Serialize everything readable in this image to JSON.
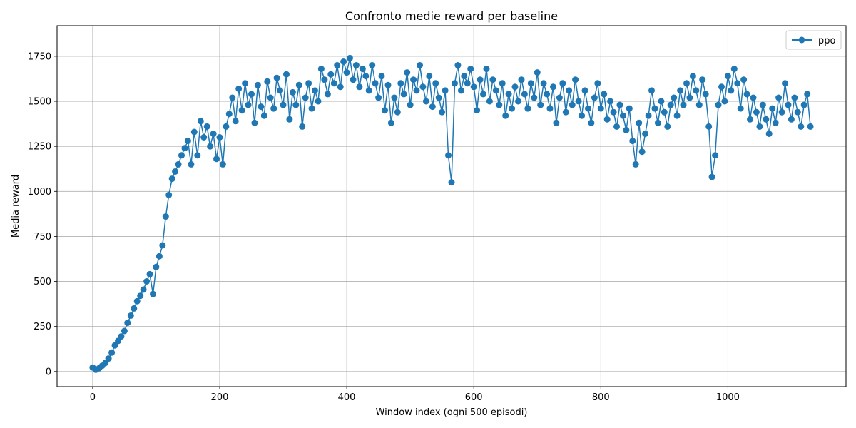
{
  "chart_data": {
    "type": "line",
    "title": "Confronto medie reward per baseline",
    "xlabel": "Window index (ogni 500 episodi)",
    "ylabel": "Media reward",
    "xlim": [
      -56,
      1186
    ],
    "ylim": [
      -84,
      1920
    ],
    "xticks": [
      0,
      200,
      400,
      600,
      800,
      1000
    ],
    "yticks": [
      0,
      250,
      500,
      750,
      1000,
      1250,
      1500,
      1750
    ],
    "grid": true,
    "legend_position": "top-right",
    "series": [
      {
        "name": "ppo",
        "color": "#1f77b4",
        "marker": "circle",
        "points": [
          [
            0,
            22
          ],
          [
            5,
            10
          ],
          [
            10,
            18
          ],
          [
            15,
            32
          ],
          [
            20,
            48
          ],
          [
            25,
            72
          ],
          [
            30,
            105
          ],
          [
            35,
            145
          ],
          [
            40,
            170
          ],
          [
            45,
            195
          ],
          [
            50,
            225
          ],
          [
            55,
            270
          ],
          [
            60,
            310
          ],
          [
            65,
            350
          ],
          [
            70,
            390
          ],
          [
            75,
            420
          ],
          [
            80,
            455
          ],
          [
            85,
            500
          ],
          [
            90,
            540
          ],
          [
            95,
            430
          ],
          [
            100,
            580
          ],
          [
            105,
            640
          ],
          [
            110,
            700
          ],
          [
            115,
            860
          ],
          [
            120,
            980
          ],
          [
            125,
            1070
          ],
          [
            130,
            1110
          ],
          [
            135,
            1150
          ],
          [
            140,
            1200
          ],
          [
            145,
            1240
          ],
          [
            150,
            1280
          ],
          [
            155,
            1150
          ],
          [
            160,
            1330
          ],
          [
            165,
            1200
          ],
          [
            170,
            1390
          ],
          [
            175,
            1300
          ],
          [
            180,
            1360
          ],
          [
            185,
            1250
          ],
          [
            190,
            1320
          ],
          [
            195,
            1180
          ],
          [
            200,
            1300
          ],
          [
            205,
            1150
          ],
          [
            210,
            1360
          ],
          [
            215,
            1430
          ],
          [
            220,
            1520
          ],
          [
            225,
            1390
          ],
          [
            230,
            1570
          ],
          [
            235,
            1450
          ],
          [
            240,
            1600
          ],
          [
            245,
            1480
          ],
          [
            250,
            1540
          ],
          [
            255,
            1380
          ],
          [
            260,
            1590
          ],
          [
            265,
            1470
          ],
          [
            270,
            1420
          ],
          [
            275,
            1610
          ],
          [
            280,
            1520
          ],
          [
            285,
            1460
          ],
          [
            290,
            1630
          ],
          [
            295,
            1560
          ],
          [
            300,
            1480
          ],
          [
            305,
            1650
          ],
          [
            310,
            1400
          ],
          [
            315,
            1550
          ],
          [
            320,
            1480
          ],
          [
            325,
            1590
          ],
          [
            330,
            1360
          ],
          [
            335,
            1520
          ],
          [
            340,
            1600
          ],
          [
            345,
            1460
          ],
          [
            350,
            1560
          ],
          [
            355,
            1500
          ],
          [
            360,
            1680
          ],
          [
            365,
            1620
          ],
          [
            370,
            1540
          ],
          [
            375,
            1650
          ],
          [
            380,
            1600
          ],
          [
            385,
            1700
          ],
          [
            390,
            1580
          ],
          [
            395,
            1720
          ],
          [
            400,
            1660
          ],
          [
            405,
            1740
          ],
          [
            410,
            1620
          ],
          [
            415,
            1700
          ],
          [
            420,
            1580
          ],
          [
            425,
            1680
          ],
          [
            430,
            1640
          ],
          [
            435,
            1560
          ],
          [
            440,
            1700
          ],
          [
            445,
            1600
          ],
          [
            450,
            1520
          ],
          [
            455,
            1640
          ],
          [
            460,
            1450
          ],
          [
            465,
            1590
          ],
          [
            470,
            1380
          ],
          [
            475,
            1520
          ],
          [
            480,
            1440
          ],
          [
            485,
            1600
          ],
          [
            490,
            1540
          ],
          [
            495,
            1660
          ],
          [
            500,
            1480
          ],
          [
            505,
            1620
          ],
          [
            510,
            1560
          ],
          [
            515,
            1700
          ],
          [
            520,
            1580
          ],
          [
            525,
            1500
          ],
          [
            530,
            1640
          ],
          [
            535,
            1470
          ],
          [
            540,
            1600
          ],
          [
            545,
            1520
          ],
          [
            550,
            1440
          ],
          [
            555,
            1560
          ],
          [
            560,
            1200
          ],
          [
            565,
            1050
          ],
          [
            570,
            1600
          ],
          [
            575,
            1700
          ],
          [
            580,
            1560
          ],
          [
            585,
            1640
          ],
          [
            590,
            1600
          ],
          [
            595,
            1680
          ],
          [
            600,
            1580
          ],
          [
            605,
            1450
          ],
          [
            610,
            1620
          ],
          [
            615,
            1540
          ],
          [
            620,
            1680
          ],
          [
            625,
            1500
          ],
          [
            630,
            1620
          ],
          [
            635,
            1560
          ],
          [
            640,
            1480
          ],
          [
            645,
            1600
          ],
          [
            650,
            1420
          ],
          [
            655,
            1540
          ],
          [
            660,
            1460
          ],
          [
            665,
            1580
          ],
          [
            670,
            1500
          ],
          [
            675,
            1620
          ],
          [
            680,
            1540
          ],
          [
            685,
            1460
          ],
          [
            690,
            1600
          ],
          [
            695,
            1520
          ],
          [
            700,
            1660
          ],
          [
            705,
            1480
          ],
          [
            710,
            1600
          ],
          [
            715,
            1540
          ],
          [
            720,
            1460
          ],
          [
            725,
            1580
          ],
          [
            730,
            1380
          ],
          [
            735,
            1520
          ],
          [
            740,
            1600
          ],
          [
            745,
            1440
          ],
          [
            750,
            1560
          ],
          [
            755,
            1480
          ],
          [
            760,
            1620
          ],
          [
            765,
            1500
          ],
          [
            770,
            1420
          ],
          [
            775,
            1560
          ],
          [
            780,
            1460
          ],
          [
            785,
            1380
          ],
          [
            790,
            1520
          ],
          [
            795,
            1600
          ],
          [
            800,
            1460
          ],
          [
            805,
            1540
          ],
          [
            810,
            1400
          ],
          [
            815,
            1500
          ],
          [
            820,
            1440
          ],
          [
            825,
            1360
          ],
          [
            830,
            1480
          ],
          [
            835,
            1420
          ],
          [
            840,
            1340
          ],
          [
            845,
            1460
          ],
          [
            850,
            1280
          ],
          [
            855,
            1150
          ],
          [
            860,
            1380
          ],
          [
            865,
            1220
          ],
          [
            870,
            1320
          ],
          [
            875,
            1420
          ],
          [
            880,
            1560
          ],
          [
            885,
            1460
          ],
          [
            890,
            1380
          ],
          [
            895,
            1500
          ],
          [
            900,
            1440
          ],
          [
            905,
            1360
          ],
          [
            910,
            1480
          ],
          [
            915,
            1520
          ],
          [
            920,
            1420
          ],
          [
            925,
            1560
          ],
          [
            930,
            1480
          ],
          [
            935,
            1600
          ],
          [
            940,
            1520
          ],
          [
            945,
            1640
          ],
          [
            950,
            1560
          ],
          [
            955,
            1480
          ],
          [
            960,
            1620
          ],
          [
            965,
            1540
          ],
          [
            970,
            1360
          ],
          [
            975,
            1080
          ],
          [
            980,
            1200
          ],
          [
            985,
            1480
          ],
          [
            990,
            1580
          ],
          [
            995,
            1500
          ],
          [
            1000,
            1640
          ],
          [
            1005,
            1560
          ],
          [
            1010,
            1680
          ],
          [
            1015,
            1600
          ],
          [
            1020,
            1460
          ],
          [
            1025,
            1620
          ],
          [
            1030,
            1540
          ],
          [
            1035,
            1400
          ],
          [
            1040,
            1520
          ],
          [
            1045,
            1440
          ],
          [
            1050,
            1360
          ],
          [
            1055,
            1480
          ],
          [
            1060,
            1400
          ],
          [
            1065,
            1320
          ],
          [
            1070,
            1460
          ],
          [
            1075,
            1380
          ],
          [
            1080,
            1520
          ],
          [
            1085,
            1440
          ],
          [
            1090,
            1600
          ],
          [
            1095,
            1480
          ],
          [
            1100,
            1400
          ],
          [
            1105,
            1520
          ],
          [
            1110,
            1440
          ],
          [
            1115,
            1360
          ],
          [
            1120,
            1480
          ],
          [
            1125,
            1540
          ],
          [
            1130,
            1360
          ]
        ]
      }
    ]
  }
}
